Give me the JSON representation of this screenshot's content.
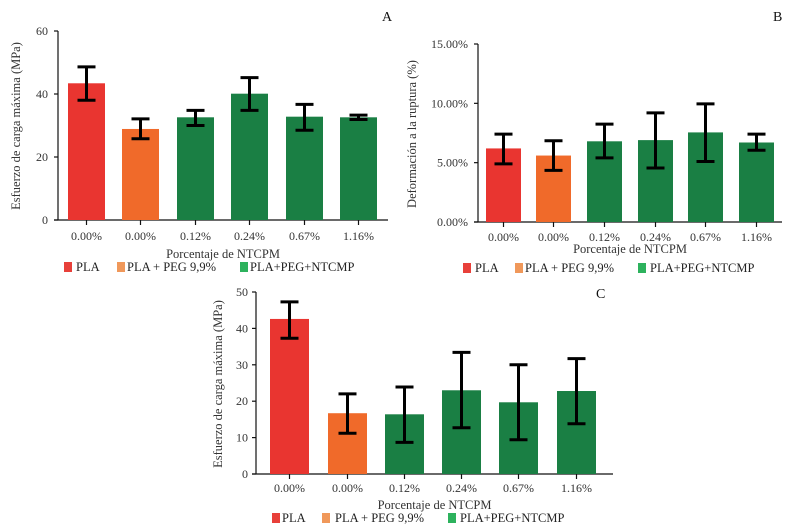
{
  "figure": {
    "legend": [
      {
        "label": "PLA",
        "color": "#e8403a"
      },
      {
        "label": "PLA + PEG 9,9%",
        "color": "#f0985a"
      },
      {
        "label": "PLA+PEG+NTCMP",
        "color": "#2db25d"
      }
    ]
  },
  "chart_data": [
    {
      "panel": "A",
      "type": "bar",
      "xlabel": "Porcentaje de NTCPM",
      "ylabel": "Esfuerzo de carga máxima (MPa)",
      "categories": [
        "0.00%",
        "0.00%",
        "0.12%",
        "0.24%",
        "0.67%",
        "1.16%"
      ],
      "groups": [
        "PLA",
        "PLA + PEG 9,9%",
        "PLA+PEG+NTCMP",
        "PLA+PEG+NTCMP",
        "PLA+PEG+NTCMP",
        "PLA+PEG+NTCMP"
      ],
      "bar_colors": [
        "#e93530",
        "#f06a2a",
        "#1a7f44",
        "#1a7f44",
        "#1a7f44",
        "#1a7f44"
      ],
      "values": [
        43.4,
        28.9,
        32.6,
        40.1,
        32.8,
        32.6
      ],
      "error_low": [
        38.0,
        25.8,
        30.0,
        34.8,
        28.5,
        31.9
      ],
      "error_high": [
        48.6,
        32.1,
        34.8,
        45.2,
        36.7,
        33.3
      ],
      "ylim": [
        0,
        60
      ],
      "yticks": [
        0,
        20,
        40,
        60
      ],
      "ytick_labels": [
        "0",
        "20",
        "40",
        "60"
      ],
      "grid": false,
      "legend_position": "bottom"
    },
    {
      "panel": "B",
      "type": "bar",
      "xlabel": "Porcentaje de NTCPM",
      "ylabel": "Deformación a la ruptura (%)",
      "categories": [
        "0.00%",
        "0.00%",
        "0.12%",
        "0.24%",
        "0.67%",
        "1.16%"
      ],
      "groups": [
        "PLA",
        "PLA + PEG 9,9%",
        "PLA+PEG+NTCMP",
        "PLA+PEG+NTCMP",
        "PLA+PEG+NTCMP",
        "PLA+PEG+NTCMP"
      ],
      "bar_colors": [
        "#e93530",
        "#f06a2a",
        "#1a7f44",
        "#1a7f44",
        "#1a7f44",
        "#1a7f44"
      ],
      "values": [
        6.2,
        5.6,
        6.8,
        6.9,
        7.55,
        6.7
      ],
      "error_low": [
        4.9,
        4.35,
        5.4,
        4.55,
        5.1,
        6.05
      ],
      "error_high": [
        7.4,
        6.85,
        8.25,
        9.2,
        9.95,
        7.4
      ],
      "ylim": [
        0,
        15
      ],
      "yticks": [
        0,
        5,
        10,
        15
      ],
      "ytick_labels": [
        "0.00%",
        "5.00%",
        "10.00%",
        "15.00%"
      ],
      "grid": false,
      "legend_position": "bottom"
    },
    {
      "panel": "C",
      "type": "bar",
      "xlabel": "Porcentaje de NTCPM",
      "ylabel": "Esfuerzo de carga máxima (MPa)",
      "categories": [
        "0.00%",
        "0.00%",
        "0.12%",
        "0.24%",
        "0.67%",
        "1.16%"
      ],
      "groups": [
        "PLA",
        "PLA + PEG 9,9%",
        "PLA+PEG+NTCMP",
        "PLA+PEG+NTCMP",
        "PLA+PEG+NTCMP",
        "PLA+PEG+NTCMP"
      ],
      "bar_colors": [
        "#e93530",
        "#f06a2a",
        "#1a7f44",
        "#1a7f44",
        "#1a7f44",
        "#1a7f44"
      ],
      "values": [
        42.6,
        16.7,
        16.4,
        23.0,
        19.7,
        22.8
      ],
      "error_low": [
        37.3,
        11.2,
        8.7,
        12.7,
        9.4,
        13.8
      ],
      "error_high": [
        47.3,
        22.0,
        23.9,
        33.4,
        30.0,
        31.7
      ],
      "ylim": [
        0,
        50
      ],
      "yticks": [
        0,
        10,
        20,
        30,
        40,
        50
      ],
      "ytick_labels": [
        "0",
        "10",
        "20",
        "30",
        "40",
        "50"
      ],
      "grid": false,
      "legend_position": "bottom"
    }
  ]
}
